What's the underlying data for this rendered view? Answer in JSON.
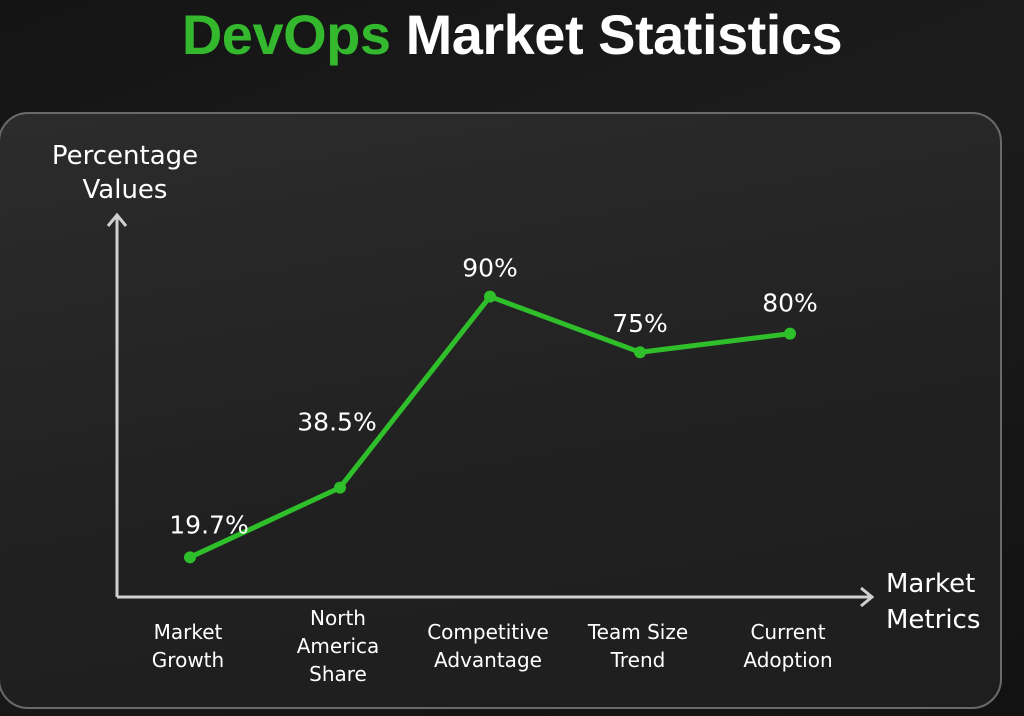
{
  "title": {
    "accent": "DevOps",
    "rest": "Market Statistics"
  },
  "colors": {
    "accent": "#33b82e",
    "line": "#2fbf2a",
    "axis": "#d0d0d0",
    "text": "#ffffff"
  },
  "chart_data": {
    "type": "line",
    "title": "DevOps Market Statistics",
    "ylabel": [
      "Percentage",
      "Values"
    ],
    "xlabel": [
      "Market",
      "Metrics"
    ],
    "categories": [
      [
        "Market",
        "Growth"
      ],
      [
        "North",
        "America",
        "Share"
      ],
      [
        "Competitive",
        "Advantage"
      ],
      [
        "Team Size",
        "Trend"
      ],
      [
        "Current",
        "Adoption"
      ]
    ],
    "values": [
      19.7,
      38.5,
      90,
      75,
      80
    ],
    "data_labels": [
      "19.7%",
      "38.5%",
      "90%",
      "75%",
      "80%"
    ],
    "ylim": [
      9,
      112
    ],
    "grid": false,
    "legend": "none"
  }
}
